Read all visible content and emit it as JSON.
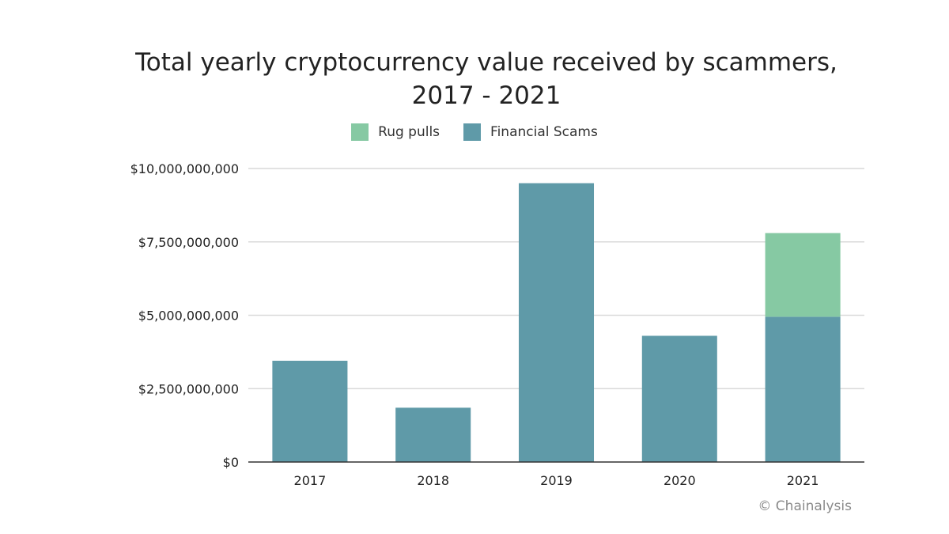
{
  "chart_data": {
    "type": "bar",
    "stacked": true,
    "title": "Total yearly cryptocurrency value received by scammers, 2017 - 2021",
    "categories": [
      "2017",
      "2018",
      "2019",
      "2020",
      "2021"
    ],
    "series": [
      {
        "name": "Financial Scams",
        "color": "#5f9aa8",
        "values": [
          3450000000,
          1850000000,
          9500000000,
          4300000000,
          4950000000
        ]
      },
      {
        "name": "Rug pulls",
        "color": "#86c9a3",
        "values": [
          0,
          0,
          0,
          0,
          2850000000
        ]
      }
    ],
    "legend_order": [
      "Rug pulls",
      "Financial Scams"
    ],
    "yticks": [
      0,
      2500000000,
      5000000000,
      7500000000,
      10000000000
    ],
    "ytick_labels": [
      "$0",
      "$2,500,000,000",
      "$5,000,000,000",
      "$7,500,000,000",
      "$10,000,000,000"
    ],
    "ylim": [
      0,
      10000000000
    ],
    "xlabel": "",
    "ylabel": "",
    "grid": true,
    "legend_position": "top-center"
  },
  "legend": {
    "rug_pulls": "Rug pulls",
    "financial_scams": "Financial Scams",
    "rug_pulls_color": "#86c9a3",
    "financial_scams_color": "#5f9aa8"
  },
  "credit": "© Chainalysis"
}
